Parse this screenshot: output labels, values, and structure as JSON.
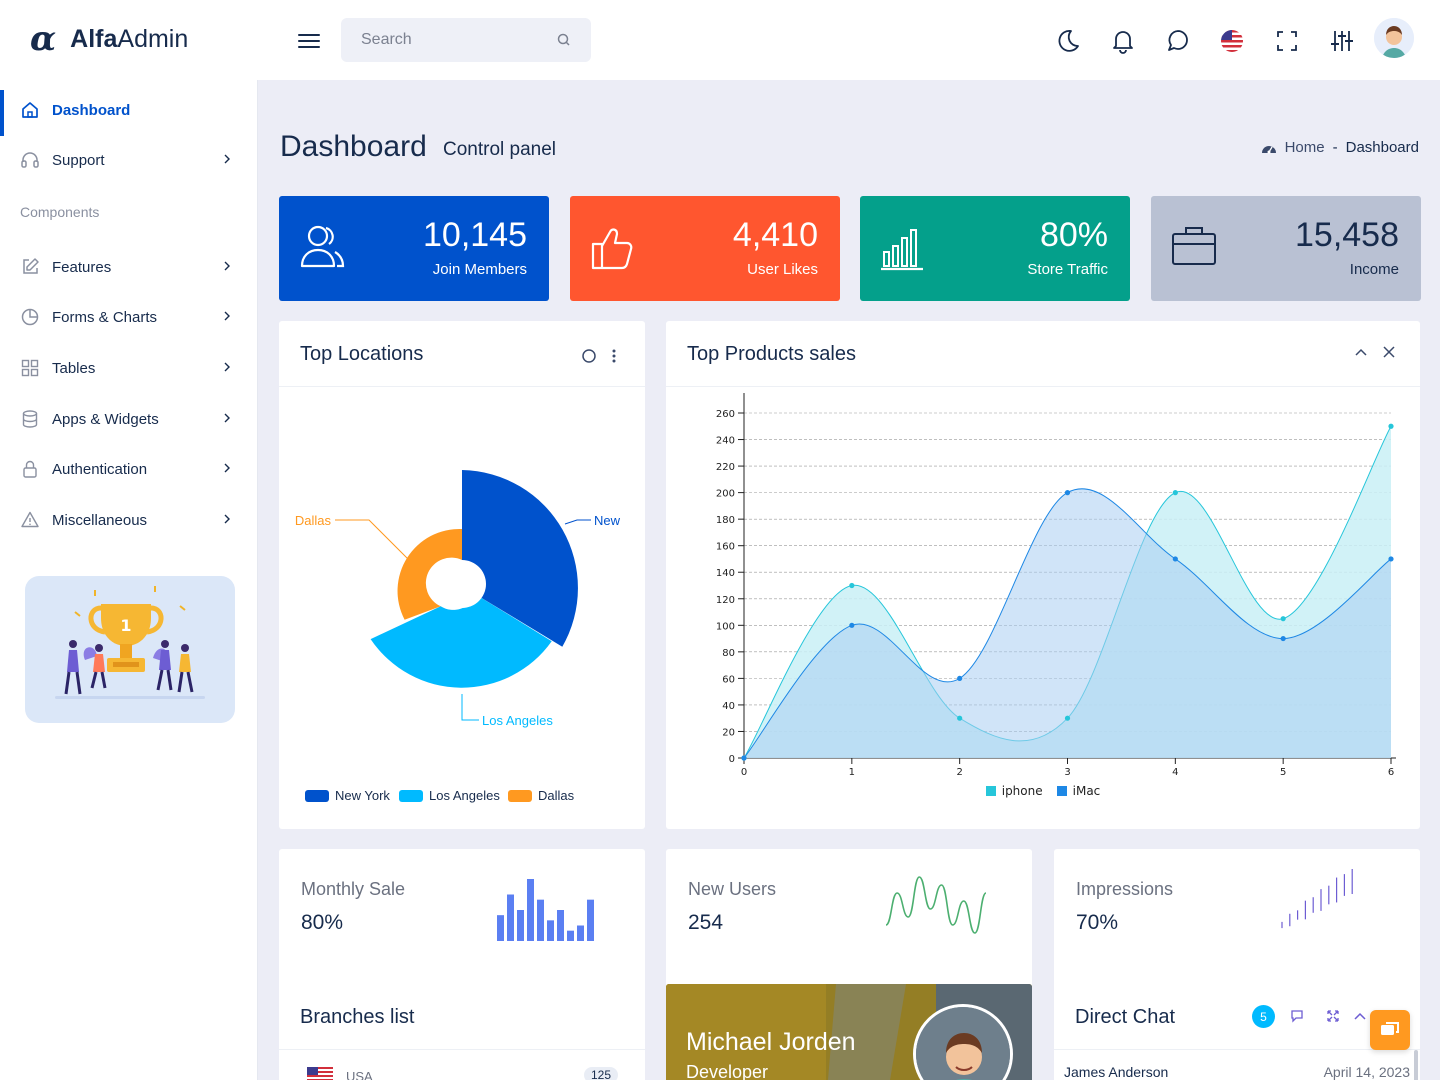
{
  "brand": {
    "mark": "α",
    "name_bold": "Alfa",
    "name_rest": "Admin"
  },
  "search": {
    "placeholder": "Search"
  },
  "header_icons": [
    "moon-icon",
    "bell-icon",
    "chat-icon",
    "us-flag-icon",
    "fullscreen-icon",
    "sliders-icon"
  ],
  "sidebar": {
    "section_label": "Components",
    "items": [
      {
        "label": "Dashboard",
        "icon": "home-icon",
        "active": true
      },
      {
        "label": "Support",
        "icon": "headset-icon"
      },
      {
        "label": "Features",
        "icon": "edit-icon"
      },
      {
        "label": "Forms & Charts",
        "icon": "pie-icon"
      },
      {
        "label": "Tables",
        "icon": "grid-icon"
      },
      {
        "label": "Apps & Widgets",
        "icon": "database-icon"
      },
      {
        "label": "Authentication",
        "icon": "lock-icon"
      },
      {
        "label": "Miscellaneous",
        "icon": "warning-icon"
      }
    ]
  },
  "page": {
    "title": "Dashboard",
    "subtitle": "Control panel"
  },
  "breadcrumb": {
    "home": "Home",
    "separator": "-",
    "current": "Dashboard"
  },
  "stats": [
    {
      "value": "10,145",
      "label": "Join Members",
      "color": "#0052cc",
      "icon": "users-icon"
    },
    {
      "value": "4,410",
      "label": "User Likes",
      "color": "#ff562f",
      "icon": "thumbs-up-icon"
    },
    {
      "value": "80%",
      "label": "Store Traffic",
      "color": "#04a08b",
      "icon": "bar-chart-icon"
    },
    {
      "value": "15,458",
      "label": "Income",
      "color": "#b9c1d3",
      "icon": "briefcase-icon"
    }
  ],
  "top_locations": {
    "title": "Top Locations",
    "labels": {
      "new_york": "New",
      "los_angeles": "Los Angeles",
      "dallas": "Dallas"
    },
    "legend": [
      {
        "name": "New York",
        "color": "#0052cc"
      },
      {
        "name": "Los Angeles",
        "color": "#00baff"
      },
      {
        "name": "Dallas",
        "color": "#ff9920"
      }
    ]
  },
  "top_products": {
    "title": "Top Products sales"
  },
  "chart_data": {
    "type": "area",
    "title": "",
    "x": [
      0,
      1,
      2,
      3,
      4,
      5,
      6
    ],
    "series": [
      {
        "name": "iphone",
        "color": "#26c6da",
        "values": [
          0,
          130,
          30,
          30,
          200,
          105,
          250
        ]
      },
      {
        "name": "iMac",
        "color": "#1e88e5",
        "values": [
          0,
          100,
          60,
          200,
          150,
          90,
          150
        ]
      }
    ],
    "ylim": [
      0,
      260
    ],
    "yticks": [
      0,
      20,
      40,
      60,
      80,
      100,
      120,
      140,
      160,
      180,
      200,
      220,
      240,
      260
    ],
    "grid": true,
    "legend": "bottom"
  },
  "mini_stats": [
    {
      "title": "Monthly Sale",
      "value": "80%",
      "spark": [
        5,
        9,
        6,
        12,
        8,
        4,
        6,
        2,
        3,
        8
      ],
      "color": "#5b7ff2"
    },
    {
      "title": "New Users",
      "value": "254",
      "spark": [
        3,
        7,
        4,
        9,
        5,
        8,
        3,
        6,
        2,
        7
      ],
      "color": "#4caf70"
    },
    {
      "title": "Impressions",
      "value": "70%",
      "spark": [
        2,
        4,
        3,
        6,
        5,
        7,
        6,
        8,
        7,
        9
      ],
      "color": "#6d5dd3"
    }
  ],
  "branches": {
    "title": "Branches list",
    "first_country": "USA",
    "first_count": "125"
  },
  "profile": {
    "name": "Michael Jorden",
    "role": "Developer"
  },
  "direct_chat": {
    "title": "Direct Chat",
    "badge": "5",
    "first_name": "James Anderson",
    "first_date": "April 14, 2023"
  }
}
